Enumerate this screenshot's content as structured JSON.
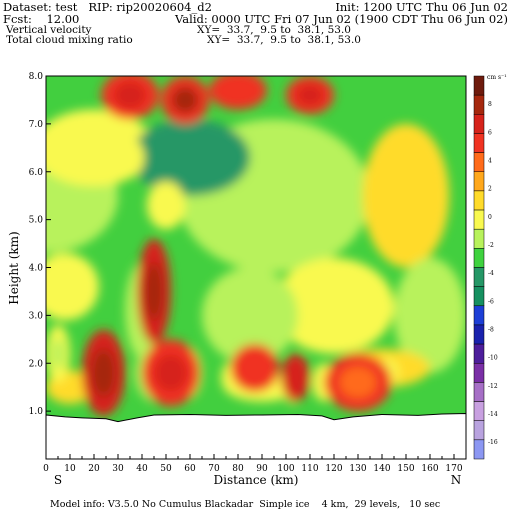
{
  "header": {
    "dataset": "Dataset: test   RIP: rip20020604_d2",
    "init": "Init: 1200 UTC Thu 06 Jun 02",
    "fcst": "Fcst:    12.00",
    "valid": "Valid: 0000 UTC Fri 07 Jun 02 (1900 CDT Thu 06 Jun 02)",
    "field1": "Vertical velocity",
    "xy1": "XY=  33.7,  9.5 to  38.1, 53.0",
    "field2": "Total cloud mixing ratio",
    "xy2": "XY=  33.7,  9.5 to  38.1, 53.0"
  },
  "colorbar": {
    "units": "cm s⁻¹",
    "labels": [
      "8",
      "6",
      "4",
      "2",
      "0",
      "-2",
      "-4",
      "-6",
      "-8",
      "-10",
      "-12",
      "-14",
      "-16"
    ],
    "colors": [
      "#6e1b0d",
      "#a5280e",
      "#d6231b",
      "#f03322",
      "#ff6b1a",
      "#ffa81c",
      "#ffdb2b",
      "#f9f950",
      "#b8f25c",
      "#3fd23f",
      "#259766",
      "#169060",
      "#1d3fd6",
      "#1a22ad",
      "#4d1e9b",
      "#7a2fa6",
      "#a66fc6",
      "#c8a0e0",
      "#b9a3df",
      "#8c97f2"
    ]
  },
  "chart_data": {
    "type": "heatmap",
    "title": "Vertical velocity",
    "xlabel": "Distance (km)",
    "ylabel": "Height (km)",
    "xlim": [
      0,
      175
    ],
    "ylim": [
      0,
      8.0
    ],
    "xticks": [
      "0",
      "10",
      "20",
      "30",
      "40",
      "50",
      "60",
      "70",
      "80",
      "90",
      "100",
      "110",
      "120",
      "130",
      "140",
      "150",
      "160",
      "170"
    ],
    "yticks": [
      "1.0",
      "2.0",
      "3.0",
      "4.0",
      "5.0",
      "6.0",
      "7.0",
      "8.0"
    ],
    "end_labels": {
      "left": "S",
      "right": "N"
    },
    "terrain": [
      [
        0,
        0.92
      ],
      [
        8,
        0.88
      ],
      [
        15,
        0.86
      ],
      [
        25,
        0.84
      ],
      [
        30,
        0.78
      ],
      [
        38,
        0.86
      ],
      [
        45,
        0.92
      ],
      [
        60,
        0.93
      ],
      [
        75,
        0.91
      ],
      [
        90,
        0.92
      ],
      [
        105,
        0.93
      ],
      [
        115,
        0.9
      ],
      [
        120,
        0.82
      ],
      [
        128,
        0.88
      ],
      [
        140,
        0.93
      ],
      [
        155,
        0.91
      ],
      [
        165,
        0.94
      ],
      [
        175,
        0.95
      ]
    ],
    "features": [
      {
        "x": 22,
        "y": 1.7,
        "rx": 7,
        "ry": 0.65,
        "level": "-6",
        "inner": "-8"
      },
      {
        "x": 45,
        "y": 1.8,
        "rx": 8,
        "ry": 0.6,
        "level": "-8",
        "inner": "-14"
      },
      {
        "x": 59,
        "y": 1.8,
        "rx": 6,
        "ry": 0.55,
        "level": "-6",
        "inner": "-8"
      },
      {
        "x": 40,
        "y": 3.1,
        "rx": 7,
        "ry": 1.0,
        "level": "-8",
        "inner": "-8"
      },
      {
        "x": 5,
        "y": 2.2,
        "rx": 5,
        "ry": 0.6,
        "level": "-6",
        "inner": "-8"
      },
      {
        "x": 8,
        "y": 3.6,
        "rx": 14,
        "ry": 0.7,
        "level": "-6",
        "inner": "-6"
      },
      {
        "x": 80,
        "y": 1.7,
        "rx": 7,
        "ry": 0.4,
        "level": "-6",
        "inner": "-6"
      },
      {
        "x": 103,
        "y": 1.6,
        "rx": 5,
        "ry": 0.45,
        "level": "-6",
        "inner": "-6"
      },
      {
        "x": 116,
        "y": 1.6,
        "rx": 5,
        "ry": 0.4,
        "level": "-6",
        "inner": "-6"
      },
      {
        "x": 142,
        "y": 1.8,
        "rx": 5,
        "ry": 0.3,
        "level": "-6",
        "inner": "-6"
      },
      {
        "x": 50,
        "y": 5.3,
        "rx": 8,
        "ry": 0.5,
        "level": "-6",
        "inner": "-6"
      },
      {
        "x": 35,
        "y": 6.3,
        "rx": 6,
        "ry": 0.4,
        "level": "-6",
        "inner": "-6"
      },
      {
        "x": 24,
        "y": 1.8,
        "rx": 9,
        "ry": 0.9,
        "level": "4",
        "inner": "6"
      },
      {
        "x": 45,
        "y": 3.5,
        "rx": 7,
        "ry": 1.1,
        "level": "4",
        "inner": "6"
      },
      {
        "x": 52,
        "y": 1.8,
        "rx": 12,
        "ry": 0.7,
        "level": "2",
        "inner": "4"
      },
      {
        "x": 87,
        "y": 1.9,
        "rx": 10,
        "ry": 0.5,
        "level": "2",
        "inner": "2"
      },
      {
        "x": 104,
        "y": 1.7,
        "rx": 6,
        "ry": 0.5,
        "level": "4",
        "inner": "4"
      },
      {
        "x": 130,
        "y": 1.6,
        "rx": 14,
        "ry": 0.6,
        "level": "2",
        "inner": "0"
      },
      {
        "x": 35,
        "y": 7.6,
        "rx": 12,
        "ry": 0.5,
        "level": "2",
        "inner": "4"
      },
      {
        "x": 58,
        "y": 7.5,
        "rx": 10,
        "ry": 0.5,
        "level": "2",
        "inner": "6"
      },
      {
        "x": 80,
        "y": 7.7,
        "rx": 12,
        "ry": 0.4,
        "level": "2",
        "inner": "2"
      },
      {
        "x": 110,
        "y": 7.6,
        "rx": 10,
        "ry": 0.4,
        "level": "2",
        "inner": "4"
      }
    ]
  },
  "footer": "Model info: V3.5.0 No Cumulus Blackadar  Simple ice    4 km,  29 levels,   10 sec"
}
